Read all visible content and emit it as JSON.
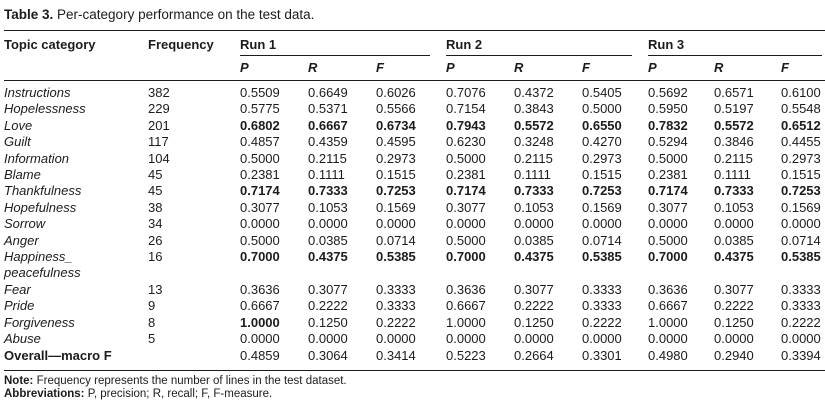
{
  "title": {
    "label": "Table 3.",
    "text": " Per-category performance on the test data."
  },
  "header": {
    "topic": "Topic category",
    "frequency": "Frequency",
    "runs": [
      "Run 1",
      "Run 2",
      "Run 3"
    ],
    "subheaders": [
      "P",
      "R",
      "F"
    ]
  },
  "rows": [
    {
      "category": "Instructions",
      "frequency": "382",
      "values": [
        "0.5509",
        "0.6649",
        "0.6026",
        "0.7076",
        "0.4372",
        "0.5405",
        "0.5692",
        "0.6571",
        "0.6100"
      ],
      "bold": []
    },
    {
      "category": "Hopelessness",
      "frequency": "229",
      "values": [
        "0.5775",
        "0.5371",
        "0.5566",
        "0.7154",
        "0.3843",
        "0.5000",
        "0.5950",
        "0.5197",
        "0.5548"
      ],
      "bold": []
    },
    {
      "category": "Love",
      "frequency": "201",
      "values": [
        "0.6802",
        "0.6667",
        "0.6734",
        "0.7943",
        "0.5572",
        "0.6550",
        "0.7832",
        "0.5572",
        "0.6512"
      ],
      "bold": "all"
    },
    {
      "category": "Guilt",
      "frequency": "117",
      "values": [
        "0.4857",
        "0.4359",
        "0.4595",
        "0.6230",
        "0.3248",
        "0.4270",
        "0.5294",
        "0.3846",
        "0.4455"
      ],
      "bold": []
    },
    {
      "category": "Information",
      "frequency": "104",
      "values": [
        "0.5000",
        "0.2115",
        "0.2973",
        "0.5000",
        "0.2115",
        "0.2973",
        "0.5000",
        "0.2115",
        "0.2973"
      ],
      "bold": []
    },
    {
      "category": "Blame",
      "frequency": "45",
      "values": [
        "0.2381",
        "0.1111",
        "0.1515",
        "0.2381",
        "0.1111",
        "0.1515",
        "0.2381",
        "0.1111",
        "0.1515"
      ],
      "bold": []
    },
    {
      "category": "Thankfulness",
      "frequency": "45",
      "values": [
        "0.7174",
        "0.7333",
        "0.7253",
        "0.7174",
        "0.7333",
        "0.7253",
        "0.7174",
        "0.7333",
        "0.7253"
      ],
      "bold": "all"
    },
    {
      "category": "Hopefulness",
      "frequency": "38",
      "values": [
        "0.3077",
        "0.1053",
        "0.1569",
        "0.3077",
        "0.1053",
        "0.1569",
        "0.3077",
        "0.1053",
        "0.1569"
      ],
      "bold": []
    },
    {
      "category": "Sorrow",
      "frequency": "34",
      "values": [
        "0.0000",
        "0.0000",
        "0.0000",
        "0.0000",
        "0.0000",
        "0.0000",
        "0.0000",
        "0.0000",
        "0.0000"
      ],
      "bold": []
    },
    {
      "category": "Anger",
      "frequency": "26",
      "values": [
        "0.5000",
        "0.0385",
        "0.0714",
        "0.5000",
        "0.0385",
        "0.0714",
        "0.5000",
        "0.0385",
        "0.0714"
      ],
      "bold": []
    },
    {
      "category": "Happiness_",
      "category2": "peacefulness",
      "frequency": "16",
      "values": [
        "0.7000",
        "0.4375",
        "0.5385",
        "0.7000",
        "0.4375",
        "0.5385",
        "0.7000",
        "0.4375",
        "0.5385"
      ],
      "bold": "all"
    },
    {
      "category": "Fear",
      "frequency": "13",
      "values": [
        "0.3636",
        "0.3077",
        "0.3333",
        "0.3636",
        "0.3077",
        "0.3333",
        "0.3636",
        "0.3077",
        "0.3333"
      ],
      "bold": []
    },
    {
      "category": "Pride",
      "frequency": "9",
      "values": [
        "0.6667",
        "0.2222",
        "0.3333",
        "0.6667",
        "0.2222",
        "0.3333",
        "0.6667",
        "0.2222",
        "0.3333"
      ],
      "bold": []
    },
    {
      "category": "Forgiveness",
      "frequency": "8",
      "values": [
        "1.0000",
        "0.1250",
        "0.2222",
        "1.0000",
        "0.1250",
        "0.2222",
        "1.0000",
        "0.1250",
        "0.2222"
      ],
      "bold": [
        0
      ]
    },
    {
      "category": "Abuse",
      "frequency": "5",
      "values": [
        "0.0000",
        "0.0000",
        "0.0000",
        "0.0000",
        "0.0000",
        "0.0000",
        "0.0000",
        "0.0000",
        "0.0000"
      ],
      "bold": []
    },
    {
      "category": "Overall—macro F",
      "frequency": "",
      "overall": true,
      "values": [
        "0.4859",
        "0.3064",
        "0.3414",
        "0.5223",
        "0.2664",
        "0.3301",
        "0.4980",
        "0.2940",
        "0.3394"
      ],
      "bold": []
    }
  ],
  "footnotes": [
    {
      "label": "Note:",
      "text": " Frequency represents the number of lines in the test dataset."
    },
    {
      "label": "Abbreviations:",
      "text": " P, precision; R, recall; F, F-measure."
    }
  ]
}
